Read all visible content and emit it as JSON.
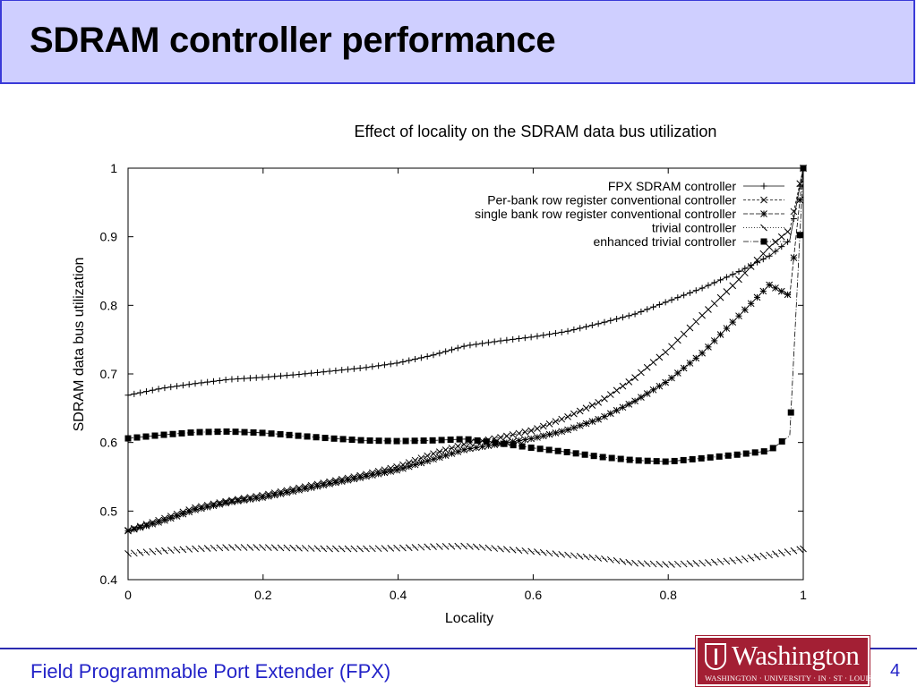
{
  "slide": {
    "title": "SDRAM controller performance",
    "footer": "Field Programmable Port Extender (FPX)",
    "page_number": "4",
    "logo": {
      "word": "Washington",
      "subtitle": "WASHINGTON · UNIVERSITY · IN · ST · LOUIS"
    }
  },
  "colors": {
    "title_bg": "#cfcfff",
    "title_border": "#3a3ad8",
    "footer_text": "#2424c8",
    "logo": "#a31f34",
    "chart_lines": "#000000"
  },
  "chart_data": {
    "type": "line",
    "title": "Effect of locality on the SDRAM data bus utilization",
    "xlabel": "Locality",
    "ylabel": "SDRAM data bus utilization",
    "xlim": [
      0,
      1
    ],
    "ylim": [
      0.4,
      1
    ],
    "xticks": [
      "0",
      "0.2",
      "0.4",
      "0.6",
      "0.8",
      "1"
    ],
    "yticks": [
      "0.4",
      "0.5",
      "0.6",
      "0.7",
      "0.8",
      "0.9",
      "1"
    ],
    "legend_position": "top-right",
    "grid": false,
    "x": [
      0,
      0.05,
      0.1,
      0.15,
      0.2,
      0.25,
      0.3,
      0.35,
      0.4,
      0.45,
      0.5,
      0.55,
      0.6,
      0.65,
      0.7,
      0.75,
      0.8,
      0.85,
      0.9,
      0.95,
      0.98,
      1
    ],
    "series": [
      {
        "name": "FPX SDRAM controller",
        "marker": "plus",
        "values": [
          0.669,
          0.679,
          0.686,
          0.692,
          0.695,
          0.699,
          0.704,
          0.709,
          0.716,
          0.727,
          0.741,
          0.748,
          0.754,
          0.762,
          0.774,
          0.787,
          0.806,
          0.825,
          0.847,
          0.872,
          0.895,
          1.0
        ]
      },
      {
        "name": "Per-bank row register conventional controller",
        "marker": "x",
        "values": [
          0.472,
          0.488,
          0.505,
          0.515,
          0.523,
          0.533,
          0.543,
          0.553,
          0.565,
          0.583,
          0.598,
          0.607,
          0.618,
          0.637,
          0.66,
          0.694,
          0.735,
          0.785,
          0.833,
          0.885,
          0.91,
          1.0
        ]
      },
      {
        "name": "single bank row register conventional controller",
        "marker": "star",
        "values": [
          0.471,
          0.485,
          0.502,
          0.513,
          0.52,
          0.53,
          0.54,
          0.55,
          0.56,
          0.575,
          0.59,
          0.598,
          0.606,
          0.618,
          0.635,
          0.66,
          0.69,
          0.73,
          0.78,
          0.83,
          0.814,
          1.0
        ]
      },
      {
        "name": "trivial controller",
        "marker": "backslash",
        "values": [
          0.438,
          0.442,
          0.445,
          0.447,
          0.447,
          0.446,
          0.445,
          0.445,
          0.446,
          0.448,
          0.449,
          0.445,
          0.441,
          0.436,
          0.431,
          0.424,
          0.422,
          0.424,
          0.428,
          0.436,
          0.441,
          0.445
        ]
      },
      {
        "name": "enhanced trivial controller",
        "marker": "square",
        "values": [
          0.606,
          0.611,
          0.615,
          0.616,
          0.614,
          0.61,
          0.606,
          0.603,
          0.602,
          0.603,
          0.605,
          0.599,
          0.592,
          0.586,
          0.579,
          0.574,
          0.572,
          0.577,
          0.582,
          0.588,
          0.61,
          1.0
        ]
      }
    ]
  }
}
